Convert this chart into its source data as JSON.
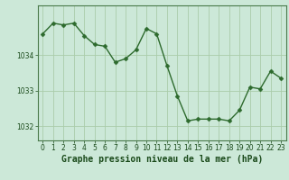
{
  "x": [
    0,
    1,
    2,
    3,
    4,
    5,
    6,
    7,
    8,
    9,
    10,
    11,
    12,
    13,
    14,
    15,
    16,
    17,
    18,
    19,
    20,
    21,
    22,
    23
  ],
  "y": [
    1034.6,
    1034.9,
    1034.85,
    1034.9,
    1034.55,
    1034.3,
    1034.25,
    1033.8,
    1033.9,
    1034.15,
    1034.75,
    1034.6,
    1033.7,
    1032.85,
    1032.15,
    1032.2,
    1032.2,
    1032.2,
    1032.15,
    1032.45,
    1033.1,
    1033.05,
    1033.55,
    1033.35
  ],
  "line_color": "#2d6a2d",
  "marker": "D",
  "markersize": 2.5,
  "linewidth": 1.0,
  "bg_color": "#cce8d8",
  "grid_color": "#aaccaa",
  "title": "Graphe pression niveau de la mer (hPa)",
  "title_color": "#1a4a1a",
  "title_fontsize": 7.0,
  "ylabel_ticks": [
    1032,
    1033,
    1034
  ],
  "ylim": [
    1031.6,
    1035.4
  ],
  "xlim": [
    -0.5,
    23.5
  ],
  "tick_color": "#1a4a1a",
  "tick_fontsize": 5.5,
  "axis_color": "#4a7a4a"
}
